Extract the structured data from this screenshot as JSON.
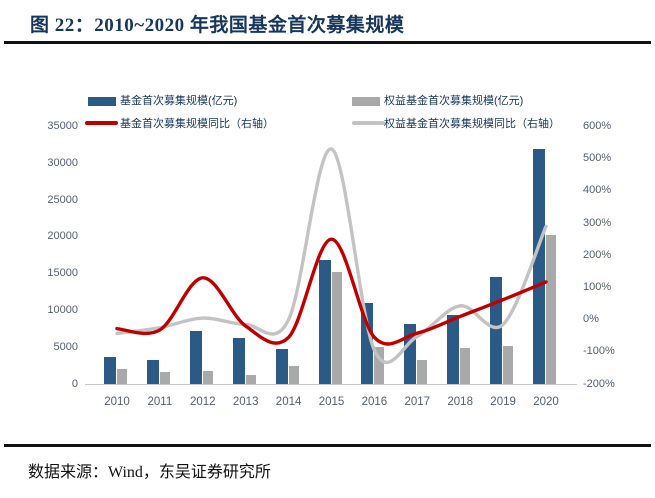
{
  "figure": {
    "title": "图 22：2010~2020 年我国基金首次募集规模",
    "source": "数据来源：Wind，东吴证券研究所"
  },
  "legend": {
    "items": [
      {
        "label": "基金首次募集规模(亿元)",
        "marker": "bar-swatch",
        "color": "#2b5a87"
      },
      {
        "label": "权益基金首次募集规模(亿元)",
        "marker": "bar-swatch",
        "color": "#a9a9a9"
      },
      {
        "label": "基金首次募集规模同比（右轴）",
        "marker": "line-swatch",
        "color": "#c00000"
      },
      {
        "label": "权益基金首次募集规模同比（右轴）",
        "marker": "line-swatch",
        "color": "#c3c3c3"
      }
    ]
  },
  "chart_data": {
    "type": "bar",
    "subtype": "grouped bars with two smoothed yoy lines on secondary axis",
    "title": "图 22：2010~2020 年我国基金首次募集规模",
    "categories": [
      "2010",
      "2011",
      "2012",
      "2013",
      "2014",
      "2015",
      "2016",
      "2017",
      "2018",
      "2019",
      "2020"
    ],
    "series": [
      {
        "id": "total_raise",
        "name": "基金首次募集规模(亿元)",
        "type": "bar",
        "axis": "left",
        "color": "#2b5a87",
        "values": [
          3700,
          3200,
          7200,
          6300,
          4800,
          16900,
          11000,
          8100,
          9400,
          14500,
          32000
        ]
      },
      {
        "id": "equity_raise",
        "name": "权益基金首次募集规模(亿元)",
        "type": "bar",
        "axis": "left",
        "color": "#a9a9a9",
        "values": [
          2000,
          1600,
          1700,
          1200,
          2400,
          15200,
          5000,
          3300,
          4900,
          5200,
          20300
        ]
      },
      {
        "id": "total_yoy",
        "name": "基金首次募集规模同比（右轴）",
        "type": "line",
        "axis": "right",
        "color": "#c00000",
        "values": [
          -28,
          -32,
          130,
          -20,
          -55,
          250,
          -55,
          -42,
          10,
          62,
          117
        ]
      },
      {
        "id": "equity_yoy",
        "name": "权益基金首次募集规模同比（右轴）",
        "type": "line",
        "axis": "right",
        "color": "#c3c3c3",
        "values": [
          -43,
          -25,
          5,
          -15,
          0,
          530,
          -95,
          -52,
          43,
          -15,
          290
        ]
      }
    ],
    "left_axis": {
      "min": 0,
      "max": 35000,
      "ticks": [
        "35000",
        "30000",
        "25000",
        "20000",
        "15000",
        "10000",
        "5000",
        "0"
      ]
    },
    "right_axis": {
      "min": -200,
      "max": 600,
      "ticks": [
        "600%",
        "500%",
        "400%",
        "300%",
        "200%",
        "100%",
        "0%",
        "-100%",
        "-200%"
      ],
      "unit": "%"
    },
    "grid": false,
    "legend_position": "top"
  }
}
